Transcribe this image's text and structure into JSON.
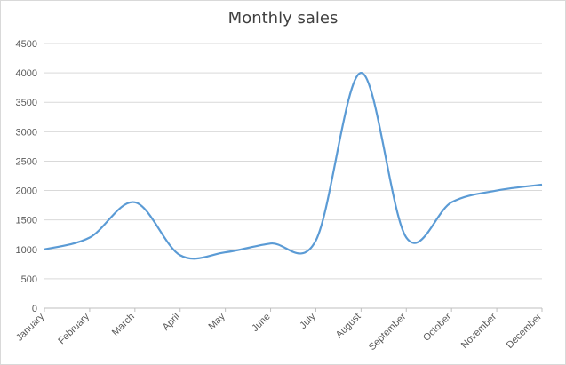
{
  "chart_data": {
    "type": "line",
    "title": "Monthly sales",
    "xlabel": "",
    "ylabel": "",
    "categories": [
      "January",
      "February",
      "March",
      "April",
      "May",
      "June",
      "July",
      "August",
      "September",
      "October",
      "November",
      "December"
    ],
    "series": [
      {
        "values": [
          1000,
          1200,
          1800,
          900,
          950,
          1100,
          1150,
          4000,
          1200,
          1800,
          2000,
          2100
        ]
      }
    ],
    "ylim": [
      0,
      4500
    ],
    "yticks": [
      0,
      500,
      1000,
      1500,
      2000,
      2500,
      3000,
      3500,
      4000,
      4500
    ],
    "grid": true,
    "colors": {
      "line": "#5b9bd5",
      "grid": "#d9d9d9",
      "axis": "#bfbfbf"
    }
  }
}
